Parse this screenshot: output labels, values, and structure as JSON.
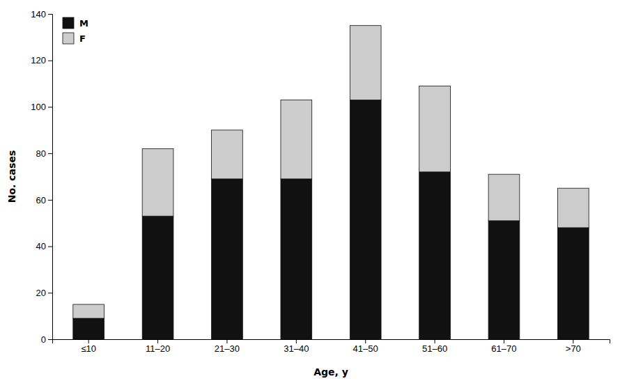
{
  "chart_data": {
    "type": "bar",
    "stacked": true,
    "categories": [
      "≤10",
      "11–20",
      "21–30",
      "31–40",
      "41–50",
      "51–60",
      "61–70",
      ">70"
    ],
    "series": [
      {
        "name": "M",
        "color": "#111111",
        "values": [
          9,
          53,
          69,
          69,
          103,
          72,
          51,
          48
        ]
      },
      {
        "name": "F",
        "color": "#cccccc",
        "values": [
          6,
          29,
          21,
          34,
          32,
          37,
          20,
          17
        ]
      }
    ],
    "xlabel": "Age, y",
    "ylabel": "No. cases",
    "ylim": [
      0,
      140
    ],
    "yticks": [
      0,
      20,
      40,
      60,
      80,
      100,
      120,
      140
    ],
    "grid": false,
    "legend": "upper left"
  }
}
